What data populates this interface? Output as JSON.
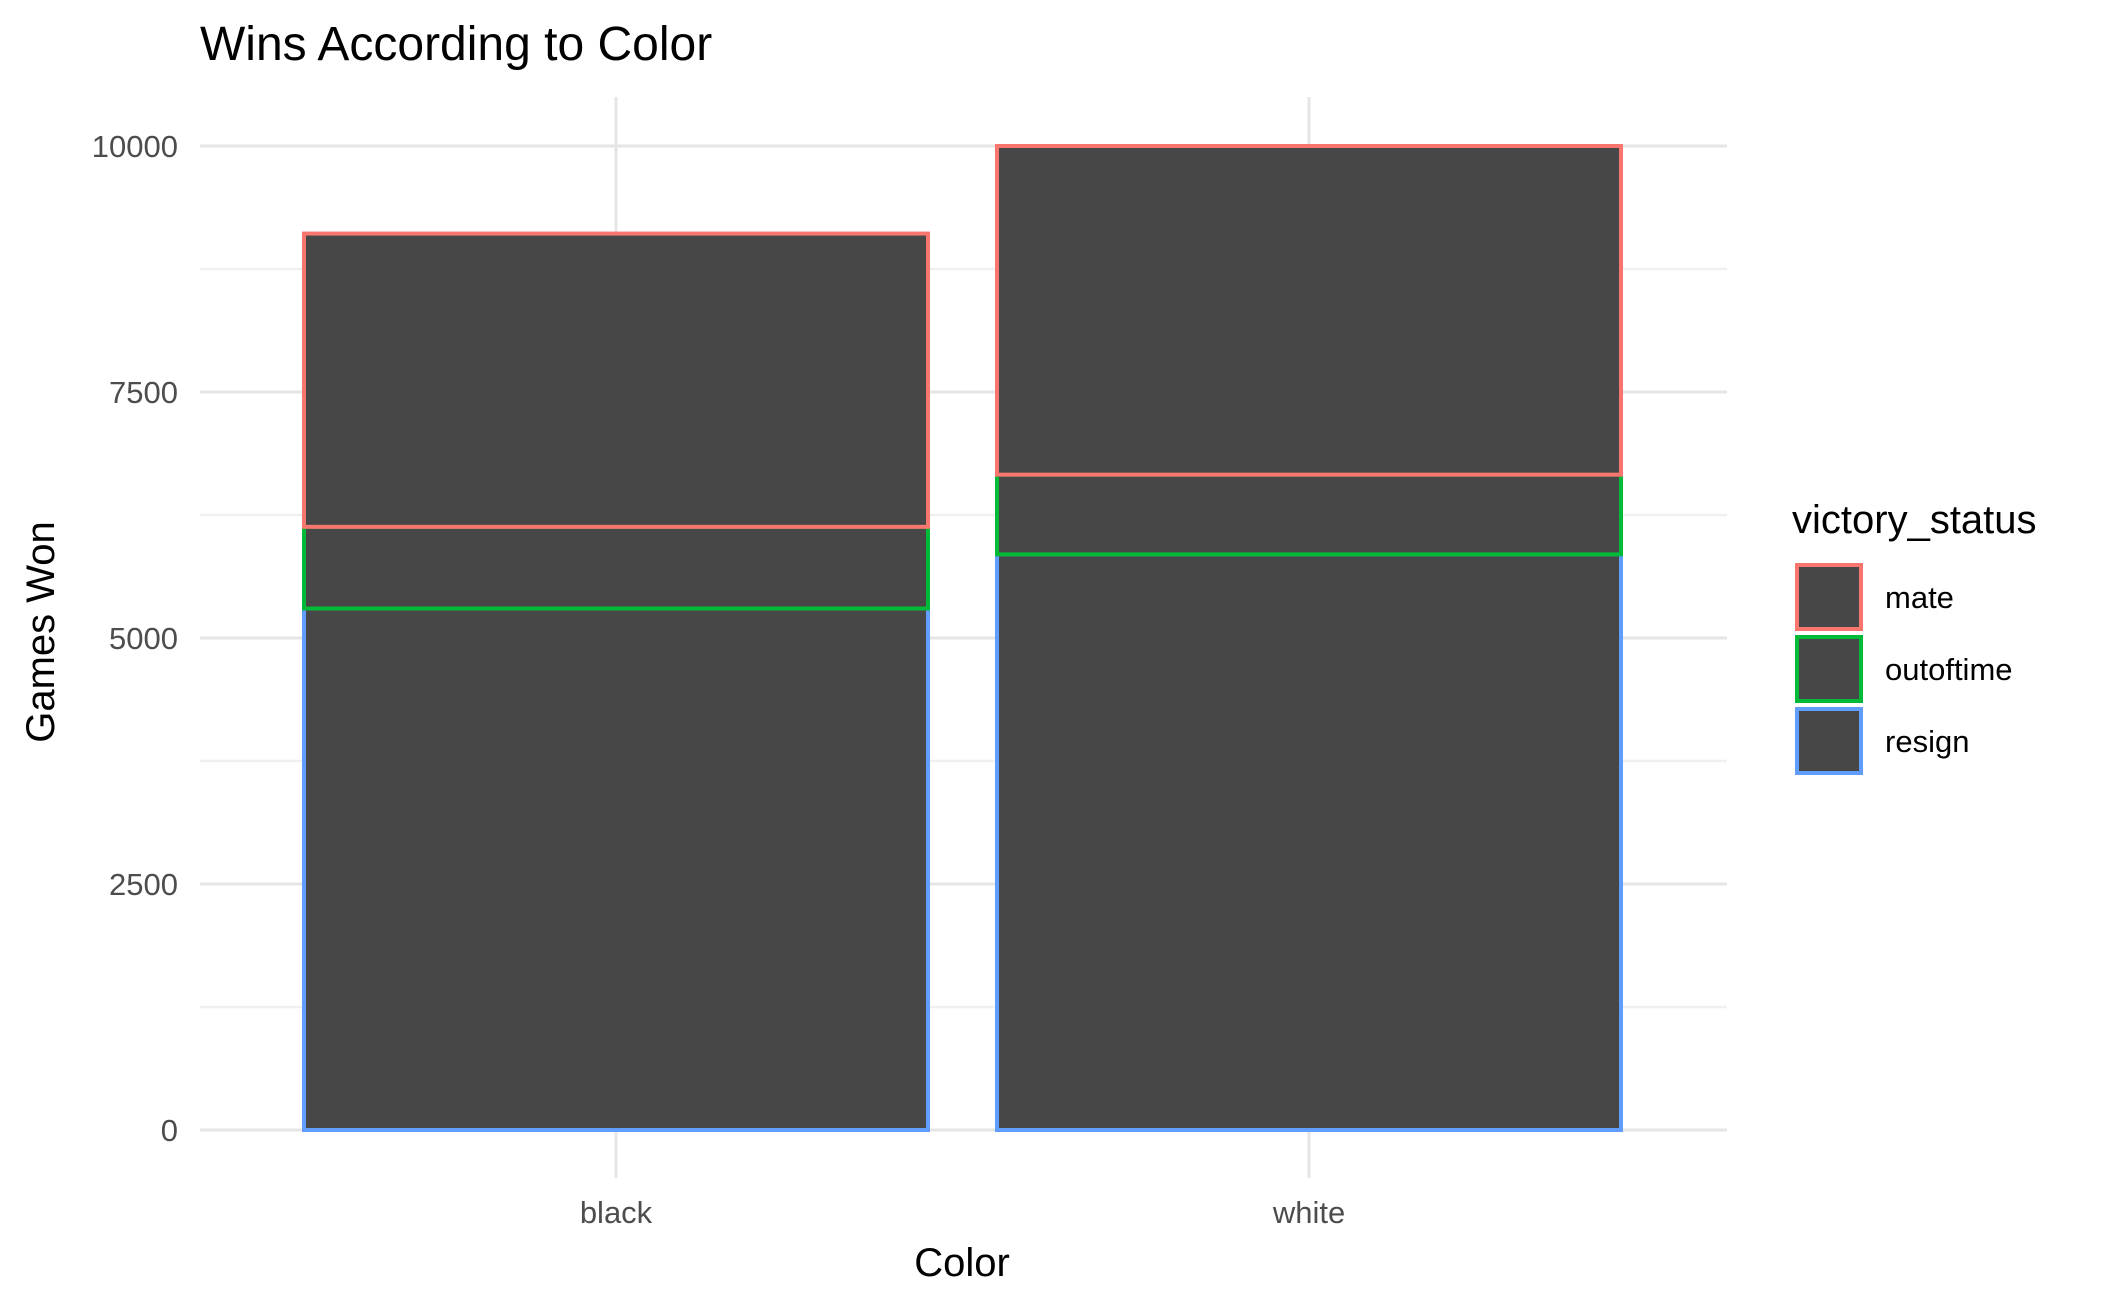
{
  "chart_data": {
    "type": "bar",
    "stacked": true,
    "title": "Wins According to Color",
    "xlabel": "Color",
    "ylabel": "Games Won",
    "categories": [
      "black",
      "white"
    ],
    "series": [
      {
        "name": "resign",
        "values": [
          5300,
          5850
        ],
        "color": "#619CFF"
      },
      {
        "name": "outoftime",
        "values": [
          830,
          810
        ],
        "color": "#00BA38"
      },
      {
        "name": "mate",
        "values": [
          2980,
          3340
        ],
        "color": "#F8766D"
      }
    ],
    "bar_fill": "#474747",
    "ylim": [
      0,
      10000
    ],
    "y_ticks": [
      "0",
      "2500",
      "5000",
      "7500",
      "10000"
    ],
    "y_tick_values": [
      0,
      2500,
      5000,
      7500,
      10000
    ],
    "grid": true,
    "legend": {
      "title": "victory_status",
      "entries": [
        "mate",
        "outoftime",
        "resign"
      ],
      "placement": "right"
    }
  }
}
